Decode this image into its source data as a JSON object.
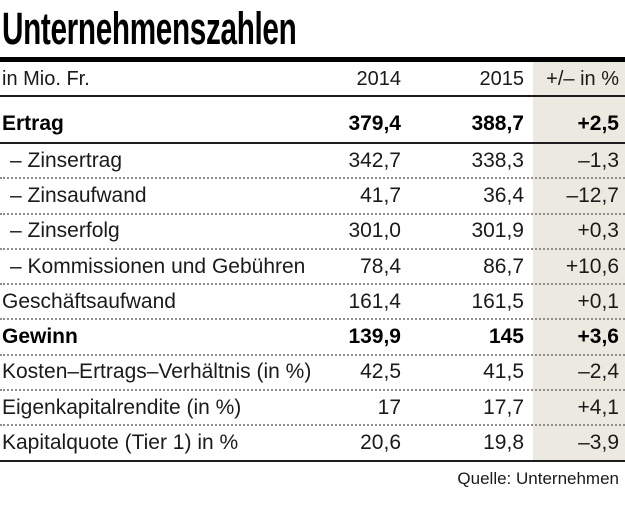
{
  "chart_data": {
    "type": "table",
    "title": "Unternehmenszahlen",
    "unit_label": "in Mio. Fr.",
    "columns": [
      "2014",
      "2015",
      "+/– in %"
    ],
    "rows": [
      {
        "label": "Ertrag",
        "v2014": "379,4",
        "v2015": "388,7",
        "change": "+2,5",
        "bold": true,
        "sub": false,
        "separator": "solid"
      },
      {
        "label": "– Zinsertrag",
        "v2014": "342,7",
        "v2015": "338,3",
        "change": "–1,3",
        "bold": false,
        "sub": true,
        "separator": "dotted"
      },
      {
        "label": "– Zinsaufwand",
        "v2014": "41,7",
        "v2015": "36,4",
        "change": "–12,7",
        "bold": false,
        "sub": true,
        "separator": "dotted"
      },
      {
        "label": "– Zinserfolg",
        "v2014": "301,0",
        "v2015": "301,9",
        "change": "+0,3",
        "bold": false,
        "sub": true,
        "separator": "dotted"
      },
      {
        "label": "– Kommissionen und Gebühren",
        "v2014": "78,4",
        "v2015": "86,7",
        "change": "+10,6",
        "bold": false,
        "sub": true,
        "separator": "dotted"
      },
      {
        "label": "Geschäftsaufwand",
        "v2014": "161,4",
        "v2015": "161,5",
        "change": "+0,1",
        "bold": false,
        "sub": false,
        "separator": "dotted"
      },
      {
        "label": "Gewinn",
        "v2014": "139,9",
        "v2015": "145",
        "change": "+3,6",
        "bold": true,
        "sub": false,
        "separator": "dotted"
      },
      {
        "label": "Kosten–Ertrags–Verhältnis (in %)",
        "v2014": "42,5",
        "v2015": "41,5",
        "change": "–2,4",
        "bold": false,
        "sub": false,
        "separator": "dotted"
      },
      {
        "label": "Eigenkapitalrendite (in %)",
        "v2014": "17",
        "v2015": "17,7",
        "change": "+4,1",
        "bold": false,
        "sub": false,
        "separator": "dotted"
      },
      {
        "label": "Kapitalquote (Tier 1) in %",
        "v2014": "20,6",
        "v2015": "19,8",
        "change": "–3,9",
        "bold": false,
        "sub": false,
        "separator": "bottom"
      }
    ],
    "source": "Quelle: Unternehmen"
  },
  "colors": {
    "accent_column_bg": "#ECEAE0",
    "rule_black": "#000000",
    "text": "#1a1a1a",
    "dotted_separator": "#8e8e8e"
  }
}
